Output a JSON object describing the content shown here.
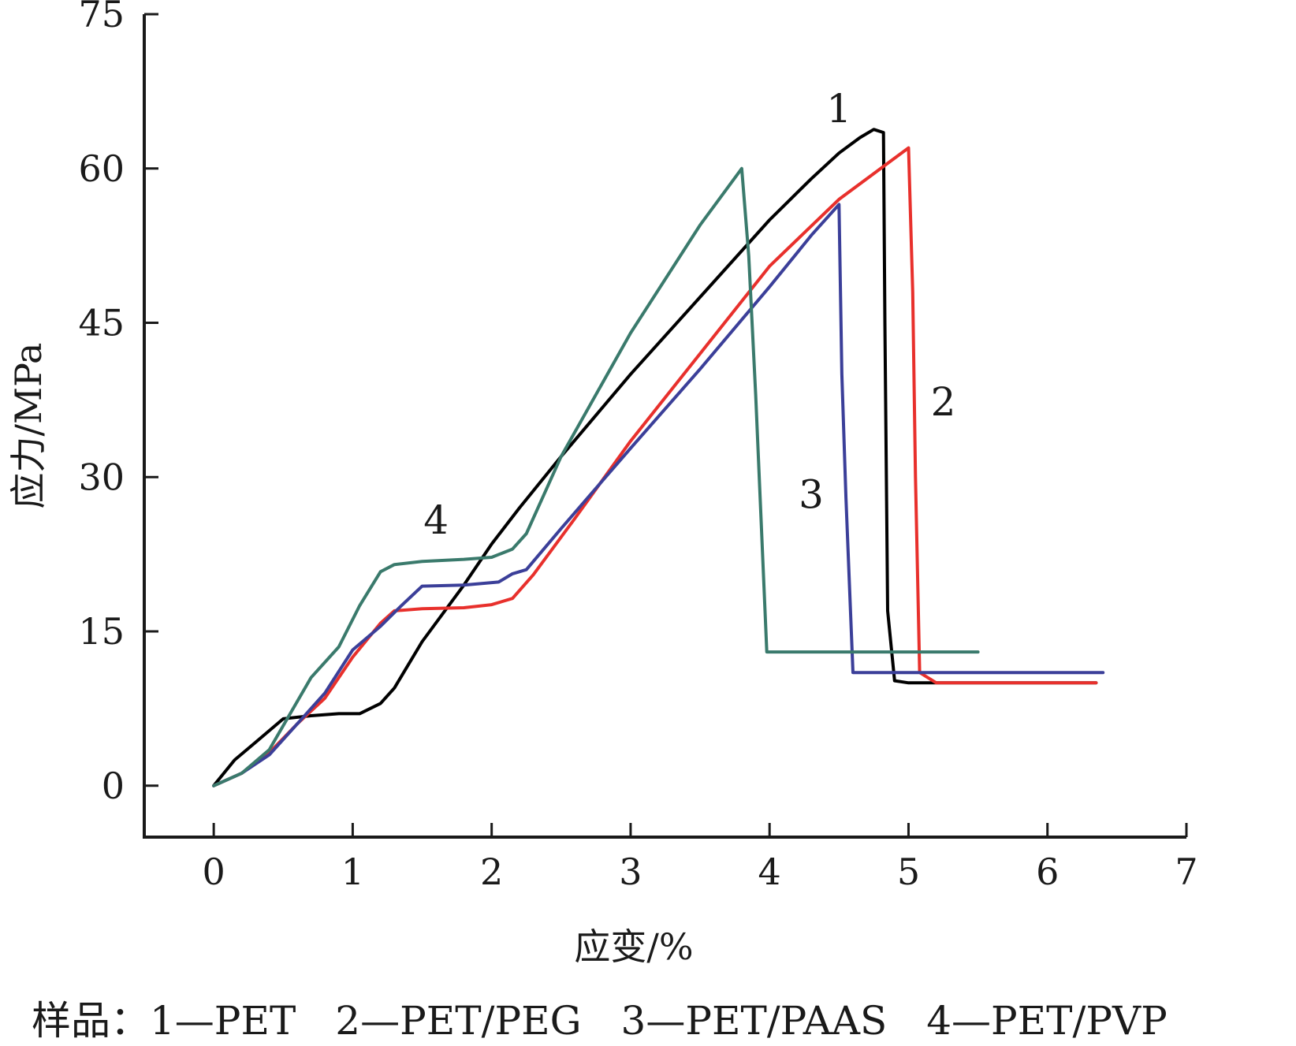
{
  "chart_data": {
    "type": "line",
    "title": "",
    "xlabel": "应变/%",
    "ylabel": "应力/MPa",
    "xlim": [
      -0.5,
      7
    ],
    "ylim": [
      -5,
      75
    ],
    "xticks": [
      0,
      1,
      2,
      3,
      4,
      5,
      6,
      7
    ],
    "yticks": [
      0,
      15,
      30,
      45,
      60,
      75
    ],
    "grid": false,
    "colors": {
      "axis": "#1a1a1a",
      "s1": "#000000",
      "s2": "#e8302c",
      "s3": "#3b3f99",
      "s4": "#3a7a6c"
    },
    "series": [
      {
        "name": "1",
        "color": "#000000",
        "x": [
          0,
          0.15,
          0.3,
          0.5,
          0.7,
          0.9,
          1.05,
          1.2,
          1.3,
          1.5,
          1.8,
          2.0,
          2.2,
          2.5,
          3.0,
          3.5,
          4.0,
          4.3,
          4.5,
          4.65,
          4.75,
          4.82,
          4.83,
          4.85,
          4.9,
          5.0,
          5.5,
          6.0,
          6.35
        ],
        "y": [
          0,
          2.5,
          4.2,
          6.5,
          6.8,
          7.0,
          7.0,
          8.0,
          9.5,
          14,
          19.5,
          23.5,
          27,
          32,
          40,
          47.5,
          55,
          59,
          61.5,
          63,
          63.8,
          63.5,
          45,
          17,
          10.2,
          10,
          10,
          10,
          10
        ]
      },
      {
        "name": "2",
        "color": "#e8302c",
        "x": [
          0,
          0.2,
          0.4,
          0.6,
          0.8,
          1.0,
          1.2,
          1.3,
          1.5,
          1.8,
          2.0,
          2.15,
          2.3,
          2.6,
          3.0,
          3.5,
          4.0,
          4.5,
          5.0,
          5.03,
          5.05,
          5.08,
          5.2,
          5.6,
          6.0,
          6.35
        ],
        "y": [
          0,
          1.2,
          3.2,
          6,
          8.5,
          12.5,
          15.8,
          17,
          17.2,
          17.3,
          17.6,
          18.2,
          20.5,
          26,
          33.5,
          42,
          50.5,
          57,
          62,
          48,
          30,
          11,
          10,
          10,
          10,
          10
        ]
      },
      {
        "name": "3",
        "color": "#3b3f99",
        "x": [
          0,
          0.2,
          0.4,
          0.6,
          0.8,
          1.0,
          1.2,
          1.35,
          1.5,
          1.8,
          2.05,
          2.15,
          2.25,
          2.5,
          3.0,
          3.5,
          4.0,
          4.3,
          4.5,
          4.52,
          4.55,
          4.6,
          4.8,
          5.5,
          6.0,
          6.4
        ],
        "y": [
          0,
          1.2,
          3,
          6,
          9,
          13.2,
          15.5,
          17.5,
          19.4,
          19.5,
          19.8,
          20.6,
          21,
          25,
          32.8,
          40.5,
          48.5,
          53.5,
          56.5,
          40,
          28,
          11,
          11,
          11,
          11,
          11
        ]
      },
      {
        "name": "4",
        "color": "#3a7a6c",
        "x": [
          0,
          0.2,
          0.4,
          0.55,
          0.7,
          0.9,
          1.05,
          1.2,
          1.3,
          1.5,
          1.8,
          2.0,
          2.15,
          2.25,
          2.5,
          3.0,
          3.5,
          3.8,
          3.85,
          3.9,
          3.98,
          4.5,
          5.0,
          5.5
        ],
        "y": [
          0,
          1.2,
          3.5,
          7,
          10.5,
          13.5,
          17.5,
          20.8,
          21.5,
          21.8,
          22,
          22.2,
          23,
          24.5,
          32,
          44,
          54.5,
          60,
          51.5,
          38,
          13,
          13,
          13,
          13
        ]
      }
    ],
    "annotations": [
      {
        "text": "1",
        "x": 4.5,
        "y": 64.5
      },
      {
        "text": "2",
        "x": 5.25,
        "y": 36
      },
      {
        "text": "3",
        "x": 4.3,
        "y": 27
      },
      {
        "text": "4",
        "x": 1.6,
        "y": 24.5
      }
    ]
  },
  "caption": "样品：1—PET　2—PET/PEG　3—PET/PAAS　4—PET/PVP"
}
